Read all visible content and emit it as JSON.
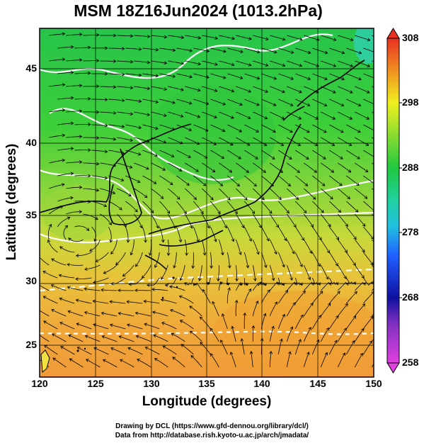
{
  "title": "MSM 18Z16Jun2024 (1013.2hPa)",
  "x_axis": {
    "label": "Longitude (degrees)",
    "range": [
      120,
      150
    ],
    "ticks": [
      "120",
      "125",
      "130",
      "135",
      "140",
      "145",
      "150"
    ]
  },
  "y_axis": {
    "label": "Latitude  (degrees)",
    "range": [
      22.4,
      47.6
    ],
    "ticks": [
      "25",
      "30",
      "35",
      "40",
      "45"
    ]
  },
  "colorbar": {
    "range": [
      258,
      308
    ],
    "ticks": [
      "258",
      "268",
      "278",
      "288",
      "298",
      "308"
    ],
    "colors": [
      "#e040e0",
      "#1010a0",
      "#2060ff",
      "#20d0e0",
      "#20c840",
      "#f0f020",
      "#f09020",
      "#e83020"
    ]
  },
  "overlay": {
    "type": "wind streamlines with white temperature contours over temperature shading",
    "grid": true
  },
  "credits": {
    "line1": "Drawing by DCL (https://www.gfd-dennou.org/library/dcl/)",
    "line2": "Data from http://database.rish.kyoto-u.ac.jp/arch/jmadata/"
  }
}
